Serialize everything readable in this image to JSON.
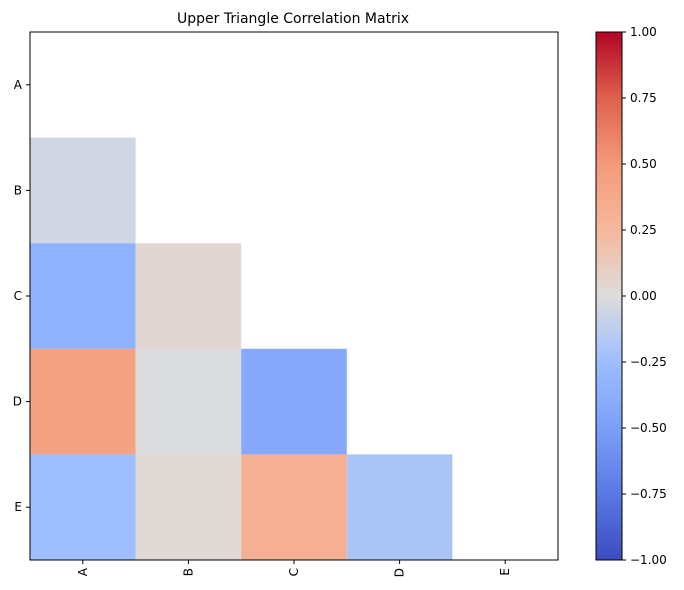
{
  "chart_data": {
    "type": "heatmap",
    "title": "Upper Triangle Correlation Matrix",
    "xlabel": "",
    "ylabel": "",
    "row_labels": [
      "A",
      "B",
      "C",
      "D",
      "E"
    ],
    "col_labels": [
      "A",
      "B",
      "C",
      "D",
      "E"
    ],
    "mask": "upper triangle (including diagonal) hidden",
    "values": [
      [
        null,
        null,
        null,
        null,
        null
      ],
      [
        -0.05,
        null,
        null,
        null,
        null
      ],
      [
        -0.35,
        0.04,
        null,
        null,
        null
      ],
      [
        0.43,
        -0.01,
        -0.42,
        null,
        null
      ],
      [
        -0.25,
        0.03,
        0.32,
        -0.2,
        null
      ]
    ],
    "colormap": "coolwarm",
    "vmin": -1.0,
    "vmax": 1.0,
    "colorbar_ticks": [
      "1.00",
      "0.75",
      "0.50",
      "0.25",
      "0.00",
      "−0.25",
      "−0.50",
      "−0.75",
      "−1.00"
    ],
    "colorbar_tick_values": [
      1.0,
      0.75,
      0.5,
      0.25,
      0.0,
      -0.25,
      -0.5,
      -0.75,
      -1.0
    ],
    "grid": false
  }
}
